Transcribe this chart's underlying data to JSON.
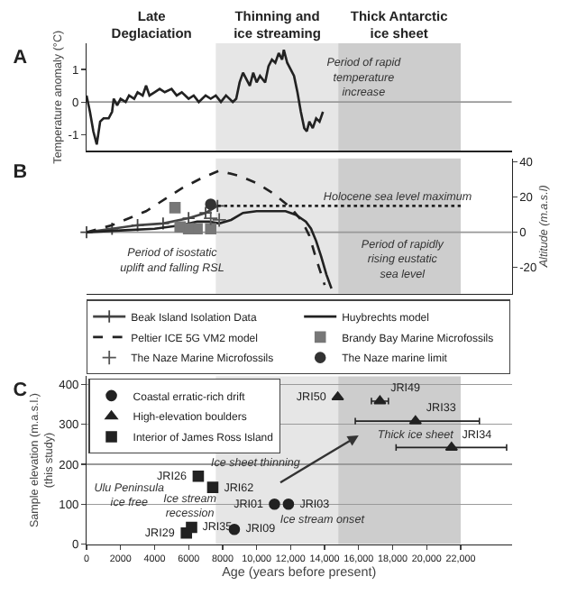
{
  "chart_data": [
    {
      "type": "line",
      "ylabel": "Temperature anomaly (°C)",
      "color": "#222222",
      "xlim": [
        0,
        25000
      ],
      "ylim": [
        -1.5,
        1.8
      ],
      "yticks": [
        -1,
        0,
        1
      ],
      "tick_labels": "y",
      "x": [
        0,
        200,
        400,
        600,
        800,
        1000,
        1300,
        1500,
        1600,
        1800,
        2000,
        2300,
        2500,
        2800,
        3000,
        3300,
        3500,
        3700,
        4000,
        4300,
        4600,
        5000,
        5300,
        5600,
        6000,
        6300,
        6600,
        7000,
        7300,
        7600,
        7900,
        8200,
        8600,
        8800,
        9000,
        9200,
        9400,
        9600,
        9800,
        10000,
        10200,
        10500,
        10700,
        10900,
        11100,
        11300,
        11500,
        11600,
        11800,
        12000,
        12200,
        12400,
        12600,
        12800,
        12950,
        13100,
        13300,
        13500,
        13700,
        13900
      ],
      "values": [
        0.2,
        -0.3,
        -0.9,
        -1.3,
        -0.6,
        -0.5,
        -0.5,
        -0.3,
        0.1,
        -0.1,
        0.1,
        0.0,
        0.2,
        0.1,
        0.3,
        0.2,
        0.5,
        0.2,
        0.3,
        0.4,
        0.3,
        0.4,
        0.2,
        0.3,
        0.1,
        0.2,
        0.0,
        0.2,
        0.1,
        0.2,
        0.0,
        0.2,
        0.0,
        0.1,
        0.6,
        0.9,
        0.7,
        0.5,
        0.9,
        0.6,
        0.8,
        0.6,
        1.1,
        1.3,
        1.2,
        1.5,
        1.3,
        1.6,
        1.2,
        1.0,
        0.8,
        0.3,
        -0.3,
        -0.8,
        -0.9,
        -0.6,
        -0.8,
        -0.5,
        -0.6,
        -0.3
      ],
      "bands": [
        {
          "axis": "x",
          "from": 7600,
          "to": 14800,
          "label": "Thinning and ice streaming",
          "color": "#e6e6e6"
        },
        {
          "axis": "x",
          "from": 14800,
          "to": 22000,
          "label": "Thick Antarctic ice sheet",
          "color": "#cdcdcd"
        }
      ],
      "ref_lines": [
        {
          "axis": "y",
          "value": 0,
          "color": "#999999"
        }
      ],
      "annotations": [
        "A",
        "Late Deglaciation",
        "Period of rapid temperature increase"
      ]
    },
    {
      "type": "line",
      "ylabel": "Altitude (m.a.s.l)",
      "xlim": [
        0,
        25000
      ],
      "ylim": [
        -35,
        42
      ],
      "yticks": [
        -20,
        0,
        20,
        40
      ],
      "tick_labels": "y",
      "legend": "bottom",
      "series": [
        {
          "name": "Beak Island Isolation Data",
          "marker": "cross",
          "line_style": "solid",
          "color": "#444444",
          "x": [
            0,
            1500,
            3000,
            4500,
            6000,
            7000,
            7700
          ],
          "values": [
            0,
            2,
            4,
            5,
            8,
            11,
            15
          ]
        },
        {
          "name": "Huybrechts model",
          "line_style": "solid",
          "color": "#222222",
          "x": [
            0,
            2000,
            4000,
            5600,
            6500,
            7200,
            7800,
            8500,
            9200,
            10000,
            11000,
            11700,
            12300,
            12900,
            13200,
            13500,
            13800,
            14100,
            14400
          ],
          "values": [
            0,
            1,
            2,
            4,
            6,
            6,
            5,
            7,
            11,
            12,
            12,
            12,
            10,
            6,
            2,
            -5,
            -14,
            -24,
            -32
          ]
        },
        {
          "name": "Peltier ICE 5G VM2 model",
          "line_style": "dashed",
          "color": "#222222",
          "x": [
            0,
            1500,
            3500,
            5600,
            6800,
            7800,
            9000,
            10000,
            11000,
            12000,
            12700,
            13100,
            13500,
            14000
          ],
          "values": [
            0,
            4,
            12,
            25,
            31,
            35,
            32,
            28,
            22,
            14,
            6,
            -2,
            -15,
            -30
          ]
        },
        {
          "name": "Brandy Bay Marine Microfossils",
          "type": "scatter",
          "marker": "square",
          "color": "#777777",
          "x": [
            5200,
            5500,
            6000,
            6500,
            7300
          ],
          "values": [
            14,
            3,
            2,
            2,
            2
          ]
        },
        {
          "name": "The Naze Marine Microfossils",
          "type": "scatter",
          "marker": "cross",
          "color": "#555555",
          "x": [
            7300,
            7800
          ],
          "values": [
            8,
            7
          ]
        },
        {
          "name": "The Naze marine limit",
          "type": "scatter",
          "marker": "circle",
          "color": "#333333",
          "x": [
            7300
          ],
          "values": [
            16
          ]
        },
        {
          "line_style": "dotted",
          "color": "#222222",
          "x": [
            7700,
            22000
          ],
          "values": [
            15,
            15
          ]
        }
      ],
      "bands": [
        {
          "axis": "x",
          "from": 7600,
          "to": 14800,
          "color": "#e6e6e6"
        },
        {
          "axis": "x",
          "from": 14800,
          "to": 22000,
          "color": "#cdcdcd"
        }
      ],
      "ref_lines": [
        {
          "axis": "y",
          "value": 0,
          "color": "#999999"
        }
      ],
      "annotations": [
        "B",
        "Period of isostatic uplift and falling RSL",
        "Holocene sea level maximum",
        "Period of rapidly rising eustatic sea level"
      ]
    },
    {
      "type": "scatter",
      "xlabel": "Age (years before present)",
      "ylabel": "Sample elevation (m.a.s.l.) (this study)",
      "xlim": [
        0,
        25000
      ],
      "xticks": [
        0,
        2000,
        4000,
        6000,
        8000,
        {
          "value": 10000,
          "label": "10,000"
        },
        {
          "value": 12000,
          "label": "12,000"
        },
        {
          "value": 14000,
          "label": "14,000"
        },
        {
          "value": 16000,
          "label": "16,000"
        },
        {
          "value": 18000,
          "label": "18,000"
        },
        {
          "value": 20000,
          "label": "20,000"
        },
        {
          "value": 22000,
          "label": "22,000"
        }
      ],
      "ylim": [
        0,
        420
      ],
      "yticks": [
        0,
        100,
        200,
        300,
        400
      ],
      "grid": "y",
      "legend": "top left",
      "series": [
        {
          "name": "Coastal erratic-rich drift",
          "marker": "circle",
          "color": "#222222",
          "x": [
            11050,
            11870,
            8690
          ],
          "values": [
            100,
            100,
            37
          ]
        },
        {
          "name": "High-elevation boulders",
          "marker": "triangle",
          "color": "#222222",
          "x": [
            14770,
            17250,
            19340,
            21460
          ],
          "values": [
            368,
            358,
            308,
            242
          ],
          "xerrors": [
            null,
            500,
            [
              15800,
              23100
            ],
            [
              18200,
              24700
            ]
          ]
        },
        {
          "name": "Interior of James Ross Island",
          "marker": "square",
          "color": "#222222",
          "x": [
            6570,
            7420,
            6175,
            5870
          ],
          "values": [
            170,
            142,
            42,
            28
          ]
        }
      ],
      "bands": [
        {
          "axis": "x",
          "from": 7600,
          "to": 14800,
          "color": "#e6e6e6"
        },
        {
          "axis": "x",
          "from": 14800,
          "to": 22000,
          "color": "#cdcdcd"
        }
      ],
      "annotations": [
        "C",
        {
          "text": "JRI50",
          "x": 14770,
          "y": 368
        },
        {
          "text": "JRI49",
          "x": 17250,
          "y": 358
        },
        {
          "text": "JRI33",
          "x": 19340,
          "y": 308
        },
        {
          "text": "JRI34",
          "x": 21460,
          "y": 242
        },
        {
          "text": "JRI26",
          "x": 6570,
          "y": 170
        },
        {
          "text": "JRI62",
          "x": 7420,
          "y": 142
        },
        {
          "text": "JRI01",
          "x": 11050,
          "y": 100
        },
        {
          "text": "JRI03",
          "x": 11870,
          "y": 100
        },
        {
          "text": "JRI35",
          "x": 6175,
          "y": 42
        },
        {
          "text": "JRI29",
          "x": 5870,
          "y": 28
        },
        {
          "text": "JRI09",
          "x": 8690,
          "y": 37
        },
        "Ice sheet thinning",
        "Thick ice sheet",
        "Ulu Peninsula ice free",
        "Ice stream recession",
        "Ice stream onset"
      ]
    }
  ]
}
